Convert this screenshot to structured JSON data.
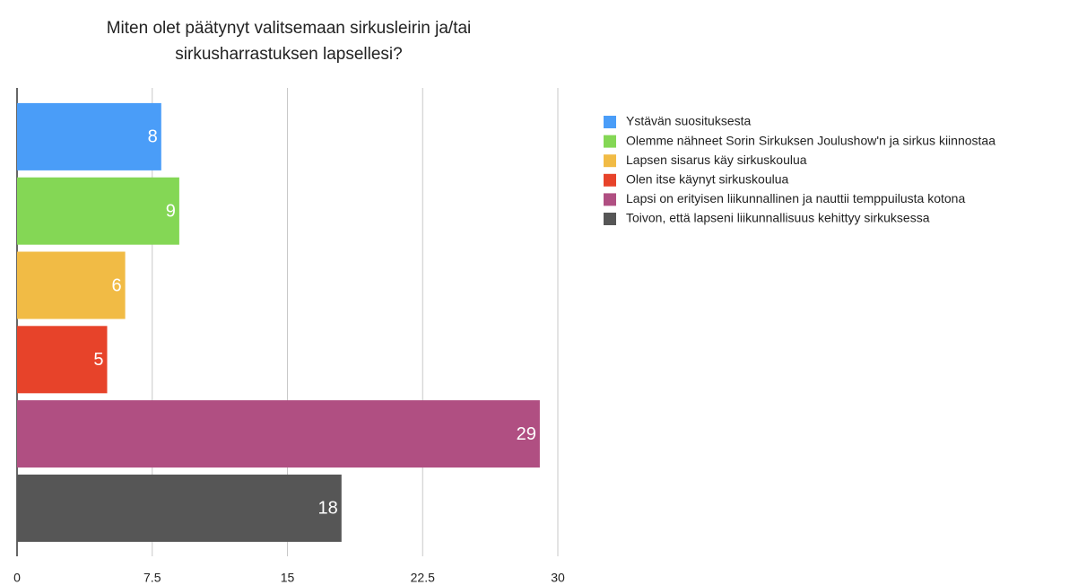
{
  "chart_data": {
    "type": "hbar",
    "title": [
      "Miten olet päätynyt valitsemaan sirkusleirin ja/tai",
      "sirkusharrastuksen lapsellesi?"
    ],
    "categories": [
      "Ystävän suosituksesta",
      "Olemme nähneet Sorin Sirkuksen Joulushow'n ja sirkus kiinnostaa",
      "Lapsen sisarus käy sirkuskoulua",
      "Olen itse käynyt sirkuskoulua",
      "Lapsi on erityisen liikunnallinen ja nauttii temppuilusta kotona",
      "Toivon, että lapseni liikunnallisuus kehittyy sirkuksessa"
    ],
    "values": [
      8,
      9,
      6,
      5,
      29,
      18
    ],
    "colors": [
      "#4a9df8",
      "#84d755",
      "#f1bb45",
      "#e7432a",
      "#b04f82",
      "#565656"
    ],
    "xlim": [
      0,
      30
    ],
    "xticks": [
      0,
      7.5,
      15,
      22.5,
      30
    ],
    "grid": true,
    "legend": "right"
  }
}
